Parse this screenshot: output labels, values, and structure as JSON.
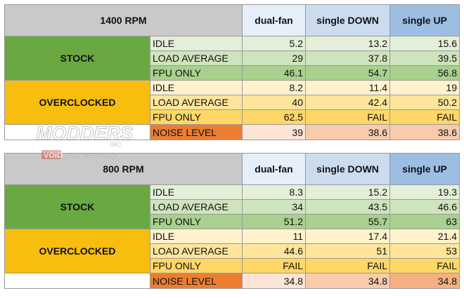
{
  "chart_data": {
    "type": "table",
    "columns": [
      "dual-fan",
      "single DOWN",
      "single UP"
    ],
    "sections": [
      {
        "title": "1400 RPM",
        "groups": [
          {
            "name": "STOCK",
            "rows": [
              {
                "label": "IDLE",
                "values": [
                  "5.2",
                  "13.2",
                  "15.6"
                ]
              },
              {
                "label": "LOAD AVERAGE",
                "values": [
                  "29",
                  "37.8",
                  "39.5"
                ]
              },
              {
                "label": "FPU ONLY",
                "values": [
                  "46.1",
                  "54.7",
                  "56.8"
                ]
              }
            ]
          },
          {
            "name": "OVERCLOCKED",
            "rows": [
              {
                "label": "IDLE",
                "values": [
                  "8.2",
                  "11.4",
                  "19"
                ]
              },
              {
                "label": "LOAD AVERAGE",
                "values": [
                  "40",
                  "42.4",
                  "50.2"
                ]
              },
              {
                "label": "FPU ONLY",
                "values": [
                  "62.5",
                  "FAIL",
                  "FAIL"
                ]
              }
            ]
          }
        ],
        "noise": {
          "label": "NOISE LEVEL",
          "values": [
            "39",
            "38.6",
            "38.6"
          ]
        }
      },
      {
        "title": "800 RPM",
        "groups": [
          {
            "name": "STOCK",
            "rows": [
              {
                "label": "IDLE",
                "values": [
                  "8.3",
                  "15.2",
                  "19.3"
                ]
              },
              {
                "label": "LOAD AVERAGE",
                "values": [
                  "34",
                  "43.5",
                  "46.6"
                ]
              },
              {
                "label": "FPU ONLY",
                "values": [
                  "51.2",
                  "55.7",
                  "63"
                ]
              }
            ]
          },
          {
            "name": "OVERCLOCKED",
            "rows": [
              {
                "label": "IDLE",
                "values": [
                  "11",
                  "17.4",
                  "21.4"
                ]
              },
              {
                "label": "LOAD AVERAGE",
                "values": [
                  "44.6",
                  "51",
                  "53"
                ]
              },
              {
                "label": "FPU ONLY",
                "values": [
                  "FAIL",
                  "FAIL",
                  "FAIL"
                ]
              }
            ]
          }
        ],
        "noise": {
          "label": "NOISE LEVEL",
          "values": [
            "34.8",
            "34.8",
            "34.8"
          ]
        }
      }
    ]
  },
  "watermark": {
    "line1": "MODDERS",
    "line2": "INC",
    "line3": "VOID",
    "line4": "your warranty"
  },
  "colors": {
    "stock_group": "#6aa942",
    "overclocked_group": "#f7bd0f",
    "noise_label": "#ec7d32",
    "title_gray": "#c9c9c9"
  }
}
